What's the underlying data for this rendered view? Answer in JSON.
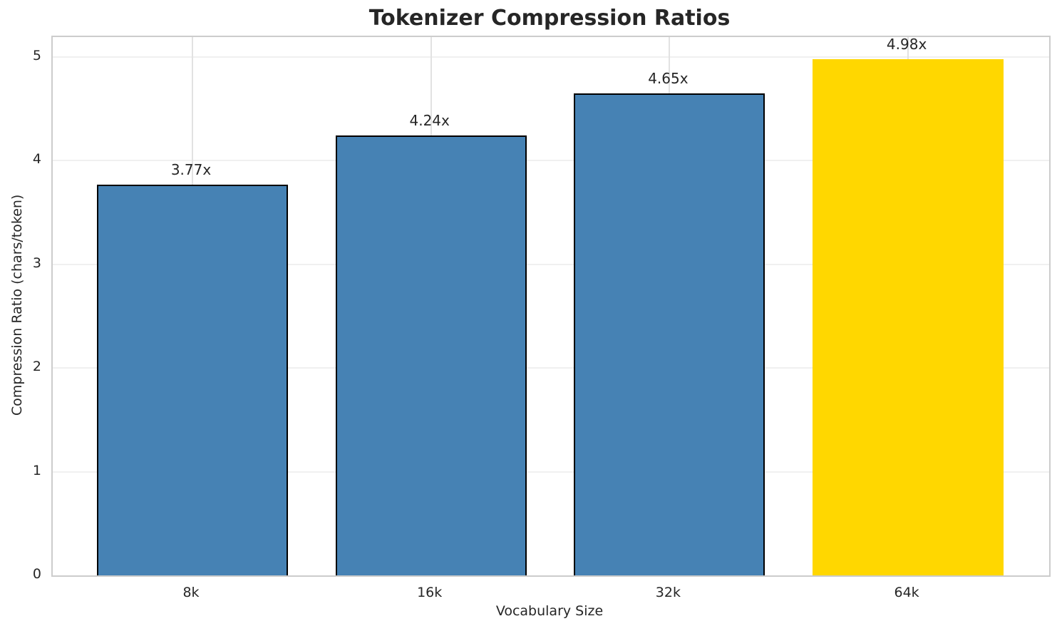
{
  "chart_data": {
    "type": "bar",
    "title": "Tokenizer Compression Ratios",
    "xlabel": "Vocabulary Size",
    "ylabel": "Compression Ratio (chars/token)",
    "categories": [
      "8k",
      "16k",
      "32k",
      "64k"
    ],
    "values": [
      3.77,
      4.24,
      4.65,
      4.98
    ],
    "bar_labels": [
      "3.77x",
      "4.24x",
      "4.65x",
      "4.98x"
    ],
    "bar_colors": [
      "#4682B4",
      "#4682B4",
      "#4682B4",
      "#FFD700"
    ],
    "bar_edge_colors": [
      "#000000",
      "#000000",
      "#000000",
      "none"
    ],
    "yticks": [
      0,
      1,
      2,
      3,
      4,
      5
    ],
    "yticklabels": [
      "0",
      "1",
      "2",
      "3",
      "4",
      "5"
    ],
    "ylim": [
      0,
      5.19
    ],
    "grid": true,
    "legend": null,
    "colors": {
      "highlight_bar": "#FFD700",
      "default_bar": "#4682B4",
      "bar_edge": "#000000",
      "text": "#262626",
      "grid_horizontal": "#f0f0f0",
      "grid_vertical": "#e2e2e2",
      "spine": "#cccccc",
      "background": "#ffffff"
    }
  }
}
